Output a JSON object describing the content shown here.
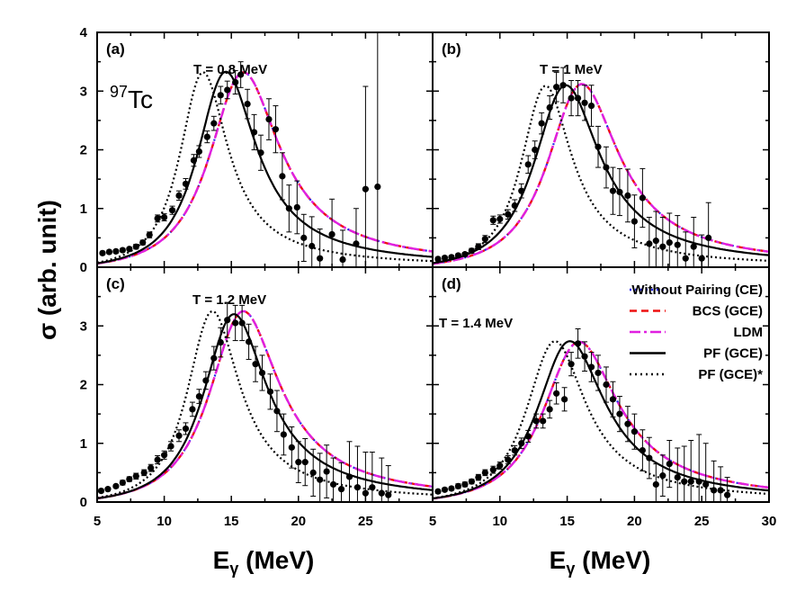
{
  "chart_data": {
    "type": "line",
    "xlabel": "E",
    "xlabel_sub": "γ",
    "xlabel_unit": " (MeV)",
    "ylabel": "σ (arb. unit)",
    "nucleus_mass": "97",
    "nucleus_symbol": "Tc",
    "xlim_left": [
      5,
      30
    ],
    "xlim_right": [
      5,
      30
    ],
    "ylim": [
      0,
      4
    ],
    "x_ticks_left": [
      "5",
      "10",
      "15",
      "20",
      "25"
    ],
    "x_ticks_right": [
      "5",
      "10",
      "15",
      "20",
      "25",
      "30"
    ],
    "y_ticks_top": [
      "0",
      "1",
      "2",
      "3",
      "4"
    ],
    "y_ticks_bottom": [
      "0",
      "1",
      "2",
      "3"
    ],
    "legend": [
      {
        "label": "Without Pairing (CE)",
        "color": "#2222ee",
        "style": "dot"
      },
      {
        "label": "BCS (GCE)",
        "color": "#ee1111",
        "style": "dash"
      },
      {
        "label": "LDM",
        "color": "#e020e0",
        "style": "dashdot"
      },
      {
        "label": "PF (GCE)",
        "color": "#000000",
        "style": "solid"
      },
      {
        "label": "PF (GCE)*",
        "color": "#000000",
        "style": "dot"
      }
    ],
    "panels": [
      {
        "tag": "(a)",
        "temperature": "T = 0.8 MeV",
        "curves": {
          "nopair": {
            "E0": 15.9,
            "G": 6.4,
            "peak": 3.32
          },
          "bcs": {
            "E0": 15.9,
            "G": 6.4,
            "peak": 3.32
          },
          "ldm": {
            "E0": 15.9,
            "G": 6.4,
            "peak": 3.32
          },
          "pf": {
            "E0": 14.6,
            "G": 5.4,
            "peak": 3.33
          },
          "pfstar": {
            "E0": 12.9,
            "G": 4.4,
            "peak": 3.32
          }
        },
        "points": [
          [
            5.4,
            0.24,
            0.03
          ],
          [
            5.9,
            0.26,
            0.03
          ],
          [
            6.4,
            0.27,
            0.03
          ],
          [
            6.9,
            0.29,
            0.03
          ],
          [
            7.4,
            0.31,
            0.03
          ],
          [
            7.9,
            0.35,
            0.04
          ],
          [
            8.4,
            0.42,
            0.04
          ],
          [
            8.9,
            0.55,
            0.05
          ],
          [
            9.5,
            0.83,
            0.06
          ],
          [
            10.0,
            0.85,
            0.06
          ],
          [
            10.6,
            0.97,
            0.07
          ],
          [
            11.1,
            1.22,
            0.08
          ],
          [
            11.6,
            1.42,
            0.09
          ],
          [
            12.2,
            1.82,
            0.1
          ],
          [
            12.6,
            1.97,
            0.1
          ],
          [
            13.2,
            2.22,
            0.1
          ],
          [
            13.7,
            2.45,
            0.12
          ],
          [
            14.2,
            2.93,
            0.15
          ],
          [
            14.7,
            3.02,
            0.15
          ],
          [
            15.3,
            3.15,
            0.2
          ],
          [
            15.7,
            3.28,
            0.22
          ],
          [
            16.2,
            2.78,
            0.25
          ],
          [
            16.7,
            2.3,
            0.3
          ],
          [
            17.2,
            1.95,
            0.3
          ],
          [
            17.8,
            2.52,
            0.35
          ],
          [
            18.3,
            2.35,
            0.4
          ],
          [
            18.8,
            1.55,
            0.4
          ],
          [
            19.3,
            1.0,
            0.4
          ],
          [
            19.9,
            1.02,
            0.45
          ],
          [
            20.4,
            0.5,
            0.4
          ],
          [
            21.0,
            0.36,
            0.5
          ],
          [
            21.6,
            0.15,
            0.5
          ],
          [
            22.5,
            0.56,
            0.6
          ],
          [
            23.3,
            0.13,
            0.5
          ],
          [
            24.3,
            0.4,
            0.6
          ],
          [
            25.0,
            1.33,
            1.75
          ],
          [
            25.9,
            1.37,
            2.8
          ]
        ]
      },
      {
        "tag": "(b)",
        "temperature": "T = 1 MeV",
        "curves": {
          "nopair": {
            "E0": 16.1,
            "G": 6.5,
            "peak": 3.12
          },
          "bcs": {
            "E0": 16.1,
            "G": 6.5,
            "peak": 3.12
          },
          "ldm": {
            "E0": 16.1,
            "G": 6.5,
            "peak": 3.12
          },
          "pf": {
            "E0": 14.9,
            "G": 6.0,
            "peak": 3.1
          },
          "pfstar": {
            "E0": 13.4,
            "G": 4.6,
            "peak": 3.09
          }
        },
        "points": [
          [
            5.4,
            0.14,
            0.03
          ],
          [
            5.9,
            0.16,
            0.03
          ],
          [
            6.4,
            0.17,
            0.03
          ],
          [
            6.9,
            0.2,
            0.03
          ],
          [
            7.4,
            0.22,
            0.03
          ],
          [
            7.9,
            0.28,
            0.04
          ],
          [
            8.4,
            0.35,
            0.05
          ],
          [
            8.9,
            0.48,
            0.06
          ],
          [
            9.5,
            0.8,
            0.07
          ],
          [
            10.0,
            0.82,
            0.07
          ],
          [
            10.6,
            0.9,
            0.08
          ],
          [
            11.1,
            1.05,
            0.1
          ],
          [
            11.6,
            1.3,
            0.12
          ],
          [
            12.1,
            1.75,
            0.15
          ],
          [
            12.6,
            2.0,
            0.15
          ],
          [
            13.1,
            2.45,
            0.18
          ],
          [
            13.7,
            2.72,
            0.2
          ],
          [
            14.2,
            3.07,
            0.25
          ],
          [
            14.7,
            3.1,
            0.3
          ],
          [
            15.3,
            2.88,
            0.3
          ],
          [
            15.8,
            2.88,
            0.3
          ],
          [
            16.3,
            2.8,
            0.3
          ],
          [
            16.8,
            2.75,
            0.35
          ],
          [
            17.3,
            2.05,
            0.35
          ],
          [
            17.9,
            1.7,
            0.35
          ],
          [
            18.4,
            1.3,
            0.4
          ],
          [
            18.9,
            1.28,
            0.4
          ],
          [
            19.5,
            1.22,
            0.45
          ],
          [
            20.0,
            0.78,
            0.45
          ],
          [
            20.6,
            1.18,
            0.5
          ],
          [
            21.1,
            0.4,
            0.45
          ],
          [
            21.6,
            0.45,
            0.5
          ],
          [
            22.1,
            0.35,
            0.5
          ],
          [
            22.6,
            0.42,
            0.5
          ],
          [
            23.2,
            0.38,
            0.5
          ],
          [
            23.8,
            0.15,
            0.45
          ],
          [
            24.4,
            0.35,
            0.5
          ],
          [
            25.0,
            0.15,
            0.4
          ],
          [
            25.5,
            0.5,
            0.6
          ]
        ]
      },
      {
        "tag": "(c)",
        "temperature": "T = 1.2 MeV",
        "curves": {
          "nopair": {
            "E0": 15.9,
            "G": 6.4,
            "peak": 3.25
          },
          "bcs": {
            "E0": 15.9,
            "G": 6.4,
            "peak": 3.25
          },
          "ldm": {
            "E0": 15.9,
            "G": 6.4,
            "peak": 3.25
          },
          "pf": {
            "E0": 15.2,
            "G": 5.8,
            "peak": 3.2
          },
          "pfstar": {
            "E0": 13.6,
            "G": 4.8,
            "peak": 3.25
          }
        },
        "points": [
          [
            5.3,
            0.19,
            0.03
          ],
          [
            5.8,
            0.22,
            0.03
          ],
          [
            6.4,
            0.27,
            0.03
          ],
          [
            6.9,
            0.33,
            0.04
          ],
          [
            7.4,
            0.39,
            0.04
          ],
          [
            7.9,
            0.44,
            0.05
          ],
          [
            8.5,
            0.5,
            0.05
          ],
          [
            9.0,
            0.58,
            0.06
          ],
          [
            9.5,
            0.72,
            0.07
          ],
          [
            10.0,
            0.8,
            0.07
          ],
          [
            10.5,
            0.95,
            0.08
          ],
          [
            11.1,
            1.13,
            0.1
          ],
          [
            11.6,
            1.25,
            0.1
          ],
          [
            12.1,
            1.58,
            0.12
          ],
          [
            12.6,
            1.8,
            0.12
          ],
          [
            13.1,
            2.07,
            0.15
          ],
          [
            13.7,
            2.45,
            0.2
          ],
          [
            14.2,
            2.72,
            0.25
          ],
          [
            14.7,
            3.1,
            0.3
          ],
          [
            15.3,
            3.05,
            0.3
          ],
          [
            15.8,
            3.05,
            0.3
          ],
          [
            16.3,
            2.73,
            0.3
          ],
          [
            16.8,
            2.35,
            0.3
          ],
          [
            17.3,
            2.2,
            0.3
          ],
          [
            17.9,
            1.88,
            0.3
          ],
          [
            18.4,
            1.55,
            0.35
          ],
          [
            18.9,
            1.15,
            0.35
          ],
          [
            19.5,
            0.93,
            0.35
          ],
          [
            20.0,
            0.68,
            0.35
          ],
          [
            20.5,
            0.68,
            0.4
          ],
          [
            21.1,
            0.5,
            0.4
          ],
          [
            21.6,
            0.38,
            0.45
          ],
          [
            22.1,
            0.52,
            0.45
          ],
          [
            22.6,
            0.3,
            0.45
          ],
          [
            23.2,
            0.22,
            0.45
          ],
          [
            23.8,
            0.43,
            0.6
          ],
          [
            24.4,
            0.25,
            0.7
          ],
          [
            25.0,
            0.15,
            0.7
          ],
          [
            25.5,
            0.25,
            0.6
          ],
          [
            26.2,
            0.15,
            0.6
          ],
          [
            26.7,
            0.12,
            0.5
          ]
        ]
      },
      {
        "tag": "(d)",
        "temperature": "T = 1.4 MeV",
        "curves": {
          "nopair": {
            "E0": 15.9,
            "G": 6.8,
            "peak": 2.73
          },
          "bcs": {
            "E0": 15.9,
            "G": 6.8,
            "peak": 2.73
          },
          "ldm": {
            "E0": 15.9,
            "G": 6.8,
            "peak": 2.73
          },
          "pf": {
            "E0": 15.2,
            "G": 6.2,
            "peak": 2.74
          },
          "pfstar": {
            "E0": 14.1,
            "G": 5.4,
            "peak": 2.74
          }
        },
        "points": [
          [
            5.4,
            0.18,
            0.03
          ],
          [
            5.9,
            0.21,
            0.03
          ],
          [
            6.4,
            0.23,
            0.03
          ],
          [
            6.9,
            0.27,
            0.04
          ],
          [
            7.4,
            0.3,
            0.04
          ],
          [
            7.9,
            0.35,
            0.04
          ],
          [
            8.4,
            0.42,
            0.05
          ],
          [
            8.9,
            0.5,
            0.05
          ],
          [
            9.5,
            0.55,
            0.06
          ],
          [
            10.0,
            0.62,
            0.06
          ],
          [
            10.6,
            0.72,
            0.07
          ],
          [
            11.1,
            0.88,
            0.08
          ],
          [
            11.6,
            1.0,
            0.09
          ],
          [
            12.1,
            1.12,
            0.1
          ],
          [
            12.7,
            1.38,
            0.12
          ],
          [
            13.2,
            1.38,
            0.12
          ],
          [
            13.7,
            1.58,
            0.15
          ],
          [
            14.2,
            1.85,
            0.18
          ],
          [
            14.8,
            1.75,
            0.2
          ],
          [
            15.3,
            2.35,
            0.2
          ],
          [
            15.8,
            2.7,
            0.25
          ],
          [
            16.3,
            2.48,
            0.25
          ],
          [
            16.8,
            2.3,
            0.25
          ],
          [
            17.3,
            2.2,
            0.3
          ],
          [
            17.9,
            2.0,
            0.3
          ],
          [
            18.4,
            1.75,
            0.3
          ],
          [
            18.9,
            1.5,
            0.3
          ],
          [
            19.5,
            1.33,
            0.3
          ],
          [
            20.0,
            1.2,
            0.3
          ],
          [
            20.6,
            0.88,
            0.35
          ],
          [
            21.1,
            0.75,
            0.35
          ],
          [
            21.6,
            0.3,
            0.35
          ],
          [
            22.1,
            0.45,
            0.35
          ],
          [
            22.6,
            0.65,
            0.4
          ],
          [
            23.2,
            0.42,
            0.5
          ],
          [
            23.7,
            0.35,
            0.6
          ],
          [
            24.2,
            0.35,
            0.7
          ],
          [
            24.8,
            0.35,
            0.8
          ],
          [
            25.3,
            0.3,
            0.7
          ],
          [
            25.9,
            0.2,
            0.5
          ],
          [
            26.4,
            0.2,
            0.4
          ],
          [
            26.9,
            0.12,
            0.3
          ]
        ]
      }
    ]
  }
}
